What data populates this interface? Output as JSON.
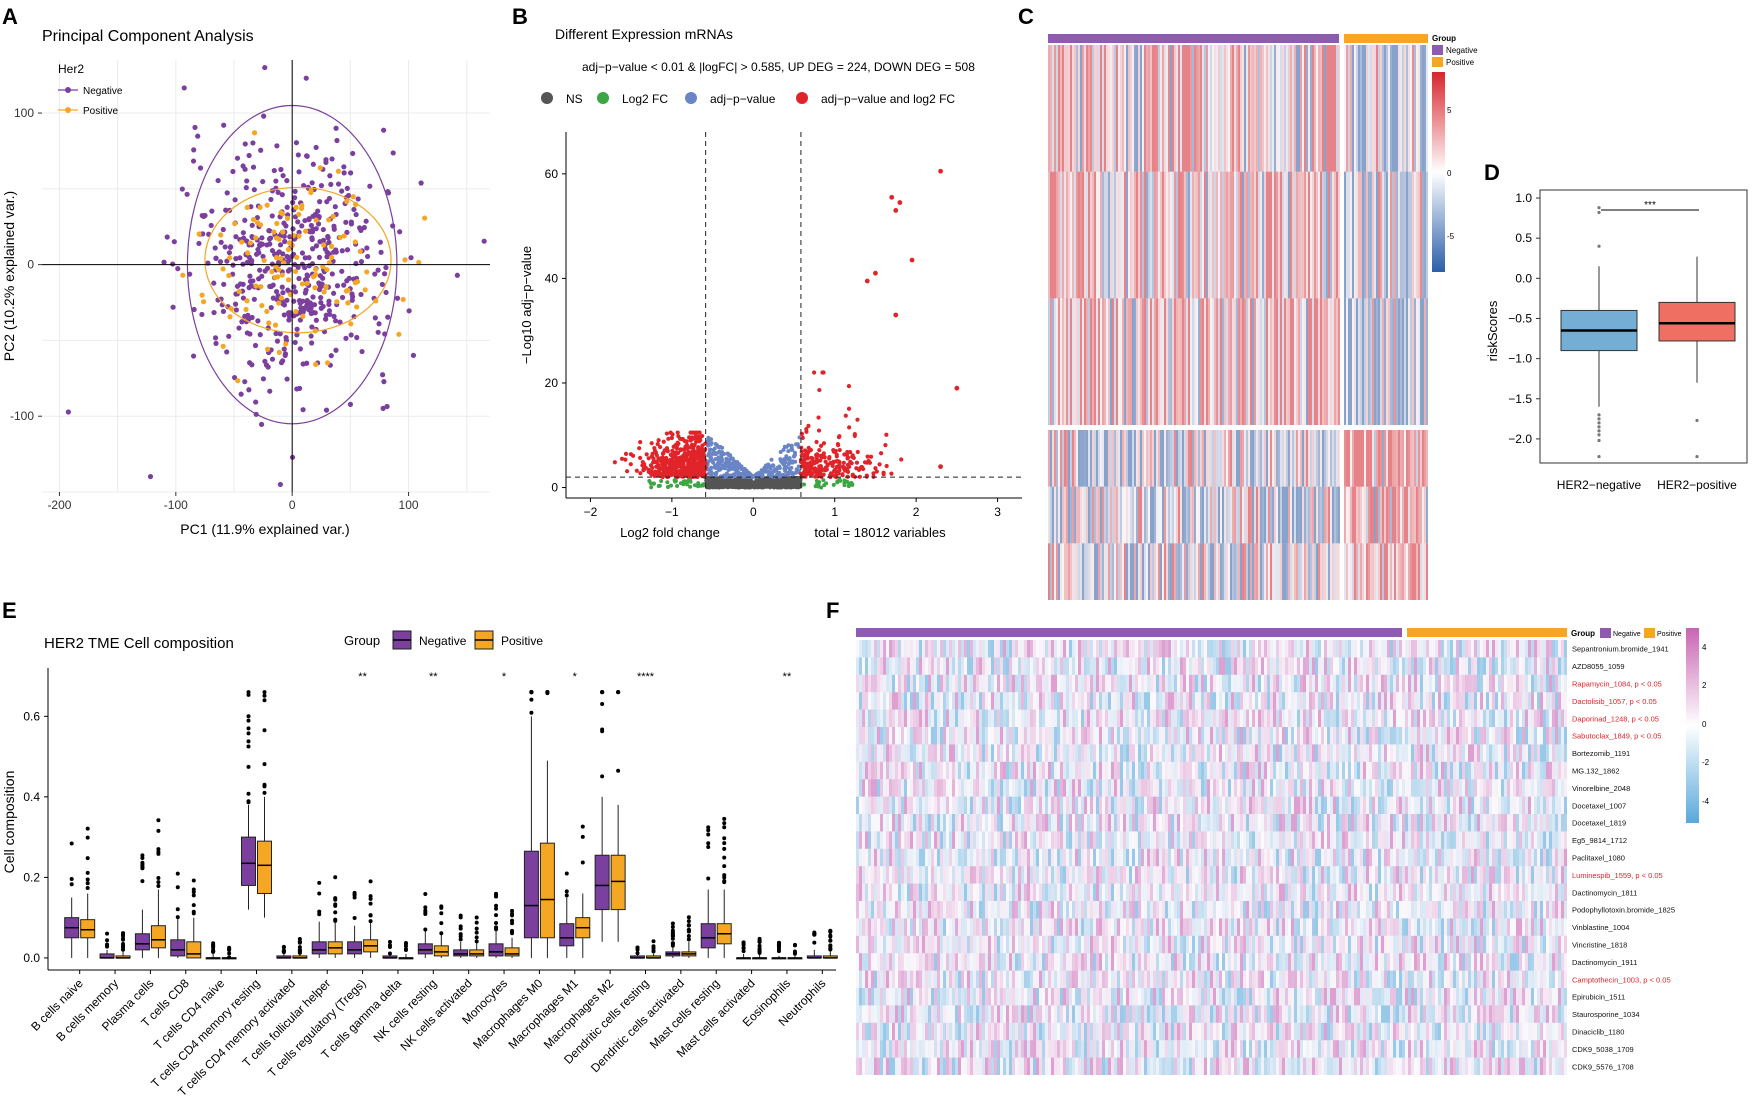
{
  "panel_letters": [
    "A",
    "B",
    "C",
    "D",
    "E",
    "F"
  ],
  "colors": {
    "negative": "#7b3f9e",
    "positive": "#f5a623",
    "ns": "#555555",
    "log2fc": "#3da544",
    "adjp": "#6a85c6",
    "both": "#e0242a",
    "box_blue": "#74aed4",
    "box_red": "#ef6f62",
    "heat_high": "#d7262d",
    "heat_low": "#2a5ea8",
    "drug_high": "#c964b4",
    "drug_low": "#58a9db"
  },
  "chart_data": [
    {
      "id": "A",
      "type": "scatter",
      "title": "Principal Component Analysis",
      "xlabel": "PC1 (11.9% explained var.)",
      "ylabel": "PC2 (10.2% explained var.)",
      "xlim": [
        -215,
        170
      ],
      "ylim": [
        -150,
        135
      ],
      "xticks": [
        -200,
        -100,
        0,
        100
      ],
      "yticks": [
        -100,
        0,
        100
      ],
      "legend_title": "Her2",
      "legend": [
        "Negative",
        "Positive"
      ],
      "series": [
        {
          "name": "Negative",
          "center": [
            0,
            0
          ],
          "spread": [
            45,
            40
          ],
          "n": 520
        },
        {
          "name": "Positive",
          "center": [
            5,
            2
          ],
          "spread": [
            40,
            30
          ],
          "n": 120
        }
      ],
      "ellipses": [
        {
          "group": "Negative",
          "center": [
            0,
            0
          ],
          "radii": [
            90,
            105
          ]
        },
        {
          "group": "Positive",
          "center": [
            5,
            3
          ],
          "radii": [
            80,
            48
          ]
        }
      ]
    },
    {
      "id": "B",
      "type": "scatter",
      "title": "Different Expression mRNAs",
      "subtitle": "adj−p−value < 0.01 & |logFC| > 0.585, UP DEG = 224, DOWN DEG = 508",
      "legend": [
        "NS",
        "Log2 FC",
        "adj−p−value",
        "adj−p−value and log2 FC"
      ],
      "xlabel": "Log2 fold change",
      "ylabel": "−Log10 adj−p−value",
      "caption": "total = 18012 variables",
      "xlim": [
        -2.3,
        3.3
      ],
      "ylim": [
        -2,
        68
      ],
      "xticks": [
        -2,
        -1,
        0,
        1,
        2,
        3
      ],
      "yticks": [
        0,
        20,
        40,
        60
      ],
      "fc_cutoff": 0.585,
      "p_cutoff_y": 2,
      "highlight_points": [
        {
          "x": 2.3,
          "y": 60.5
        },
        {
          "x": 1.7,
          "y": 55.5
        },
        {
          "x": 1.8,
          "y": 54.5
        },
        {
          "x": 1.75,
          "y": 53
        },
        {
          "x": 1.95,
          "y": 43.5
        },
        {
          "x": 1.5,
          "y": 41
        },
        {
          "x": 1.4,
          "y": 39.5
        },
        {
          "x": 1.75,
          "y": 33
        },
        {
          "x": 2.5,
          "y": 19
        },
        {
          "x": 2.3,
          "y": 4
        }
      ]
    },
    {
      "id": "C",
      "type": "heatmap",
      "legend_title": "Group",
      "legend": [
        "Negative",
        "Positive"
      ],
      "color_ticks": [
        5,
        0,
        -5
      ]
    },
    {
      "id": "D",
      "type": "box",
      "ylabel": "riskScores",
      "categories": [
        "HER2−negative",
        "HER2−positive"
      ],
      "ylim": [
        -2.3,
        1.1
      ],
      "yticks": [
        1.0,
        0.5,
        0.0,
        -0.5,
        -1.0,
        -1.5,
        -2.0
      ],
      "significance": "***",
      "boxes": [
        {
          "name": "HER2−negative",
          "q1": -0.9,
          "median": -0.65,
          "q3": -0.4,
          "whisker_low": -1.6,
          "whisker_high": 0.15,
          "outliers": [
            0.82,
            0.88,
            0.4,
            -1.7,
            -1.75,
            -1.8,
            -1.85,
            -1.9,
            -1.95,
            -2.02,
            -2.22
          ]
        },
        {
          "name": "HER2−positive",
          "q1": -0.78,
          "median": -0.56,
          "q3": -0.3,
          "whisker_low": -1.3,
          "whisker_high": 0.27,
          "outliers": [
            -1.77,
            -2.22
          ]
        }
      ]
    },
    {
      "id": "E",
      "type": "box",
      "title": "HER2 TME Cell composition",
      "legend_title": "Group",
      "legend": [
        "Negative",
        "Positive"
      ],
      "ylabel": "Cell composition",
      "ylim": [
        -0.03,
        0.72
      ],
      "yticks": [
        0.0,
        0.2,
        0.4,
        0.6
      ],
      "yticklabels": [
        "0.0",
        "0.2",
        "0.4",
        "0.6"
      ],
      "categories": [
        "B cells naive",
        "B cells memory",
        "Plasma cells",
        "T cells CD8",
        "T cells CD4 naive",
        "T cells CD4 memory resting",
        "T cells CD4 memory activated",
        "T cells follicular helper",
        "T cells regulatory (Tregs)",
        "T cells gamma delta",
        "NK cells resting",
        "NK cells activated",
        "Monocytes",
        "Macrophages M0",
        "Macrophages M1",
        "Macrophages M2",
        "Dendritic cells resting",
        "Dendritic cells activated",
        "Mast cells resting",
        "Mast cells activated",
        "Eosinophils",
        "Neutrophils"
      ],
      "significance": [
        "",
        "",
        "",
        "",
        "",
        "",
        "",
        "",
        "**",
        "",
        "**",
        "",
        "*",
        "",
        "*",
        "",
        "****",
        "",
        "",
        "",
        "**",
        ""
      ],
      "series": [
        {
          "name": "Negative",
          "boxes": [
            [
              0.0,
              0.05,
              0.075,
              0.1,
              0.15
            ],
            [
              0.0,
              0.0,
              0.0,
              0.01,
              0.02
            ],
            [
              0.0,
              0.02,
              0.035,
              0.06,
              0.12
            ],
            [
              0.0,
              0.005,
              0.02,
              0.045,
              0.1
            ],
            [
              0.0,
              0.0,
              0.0,
              0.0,
              0.01
            ],
            [
              0.12,
              0.18,
              0.235,
              0.3,
              0.38
            ],
            [
              0.0,
              0.0,
              0.0,
              0.005,
              0.01
            ],
            [
              0.0,
              0.01,
              0.02,
              0.04,
              0.09
            ],
            [
              0.0,
              0.01,
              0.02,
              0.04,
              0.08
            ],
            [
              0.0,
              0.0,
              0.0,
              0.005,
              0.01
            ],
            [
              0.0,
              0.01,
              0.02,
              0.035,
              0.07
            ],
            [
              0.0,
              0.005,
              0.01,
              0.02,
              0.04
            ],
            [
              0.0,
              0.005,
              0.015,
              0.035,
              0.07
            ],
            [
              0.0,
              0.05,
              0.13,
              0.265,
              0.6
            ],
            [
              0.0,
              0.03,
              0.05,
              0.085,
              0.15
            ],
            [
              0.04,
              0.12,
              0.18,
              0.255,
              0.4
            ],
            [
              0.0,
              0.0,
              0.0,
              0.005,
              0.01
            ],
            [
              0.0,
              0.005,
              0.01,
              0.015,
              0.03
            ],
            [
              0.0,
              0.025,
              0.05,
              0.085,
              0.17
            ],
            [
              0.0,
              0.0,
              0.0,
              0.0,
              0.01
            ],
            [
              0.0,
              0.0,
              0.0,
              0.0,
              0.005
            ],
            [
              0.0,
              0.0,
              0.0,
              0.005,
              0.02
            ]
          ]
        },
        {
          "name": "Positive",
          "boxes": [
            [
              0.0,
              0.05,
              0.07,
              0.095,
              0.16
            ],
            [
              0.0,
              0.0,
              0.0,
              0.005,
              0.02
            ],
            [
              0.0,
              0.025,
              0.045,
              0.08,
              0.17
            ],
            [
              0.0,
              0.0,
              0.01,
              0.04,
              0.1
            ],
            [
              0.0,
              0.0,
              0.0,
              0.0,
              0.0
            ],
            [
              0.1,
              0.16,
              0.23,
              0.29,
              0.4
            ],
            [
              0.0,
              0.0,
              0.0,
              0.005,
              0.01
            ],
            [
              0.0,
              0.01,
              0.025,
              0.04,
              0.09
            ],
            [
              0.0,
              0.015,
              0.03,
              0.045,
              0.09
            ],
            [
              0.0,
              0.0,
              0.0,
              0.0,
              0.01
            ],
            [
              0.0,
              0.005,
              0.015,
              0.03,
              0.06
            ],
            [
              0.0,
              0.005,
              0.01,
              0.02,
              0.04
            ],
            [
              0.0,
              0.005,
              0.01,
              0.025,
              0.05
            ],
            [
              0.0,
              0.05,
              0.145,
              0.285,
              0.49
            ],
            [
              0.0,
              0.05,
              0.075,
              0.1,
              0.16
            ],
            [
              0.04,
              0.12,
              0.19,
              0.255,
              0.38
            ],
            [
              0.0,
              0.0,
              0.0,
              0.005,
              0.01
            ],
            [
              0.0,
              0.005,
              0.01,
              0.015,
              0.04
            ],
            [
              0.0,
              0.035,
              0.06,
              0.085,
              0.17
            ],
            [
              0.0,
              0.0,
              0.0,
              0.0,
              0.01
            ],
            [
              0.0,
              0.0,
              0.0,
              0.0,
              0.005
            ],
            [
              0.0,
              0.0,
              0.0,
              0.005,
              0.02
            ]
          ]
        }
      ]
    },
    {
      "id": "F",
      "type": "heatmap",
      "legend_title": "Group",
      "legend": [
        "Negative",
        "Positive"
      ],
      "color_ticks": [
        4,
        2,
        0,
        -2,
        -4
      ],
      "rows": [
        {
          "label": "Sepantronium.bromide_1941",
          "sig": false
        },
        {
          "label": "AZD8055_1059",
          "sig": false
        },
        {
          "label": "Rapamycin_1084, p < 0.05",
          "sig": true
        },
        {
          "label": "Dactolisib_1057, p < 0.05",
          "sig": true
        },
        {
          "label": "Daporinad_1248, p < 0.05",
          "sig": true
        },
        {
          "label": "Sabutoclax_1849, p < 0.05",
          "sig": true
        },
        {
          "label": "Bortezomib_1191",
          "sig": false
        },
        {
          "label": "MG.132_1862",
          "sig": false
        },
        {
          "label": "Vinorelbine_2048",
          "sig": false
        },
        {
          "label": "Docetaxel_1007",
          "sig": false
        },
        {
          "label": "Docetaxel_1819",
          "sig": false
        },
        {
          "label": "Eg5_9814_1712",
          "sig": false
        },
        {
          "label": "Paclitaxel_1080",
          "sig": false
        },
        {
          "label": "Luminespib_1559, p < 0.05",
          "sig": true
        },
        {
          "label": "Dactinomycin_1811",
          "sig": false
        },
        {
          "label": "Podophyllotoxin.bromide_1825",
          "sig": false
        },
        {
          "label": "Vinblastine_1004",
          "sig": false
        },
        {
          "label": "Vincristine_1818",
          "sig": false
        },
        {
          "label": "Dactinomycin_1911",
          "sig": false
        },
        {
          "label": "Camptothecin_1003, p < 0.05",
          "sig": true
        },
        {
          "label": "Epirubicin_1511",
          "sig": false
        },
        {
          "label": "Staurosporine_1034",
          "sig": false
        },
        {
          "label": "Dinaciclib_1180",
          "sig": false
        },
        {
          "label": "CDK9_5038_1709",
          "sig": false
        },
        {
          "label": "CDK9_5576_1708",
          "sig": false
        }
      ]
    }
  ]
}
